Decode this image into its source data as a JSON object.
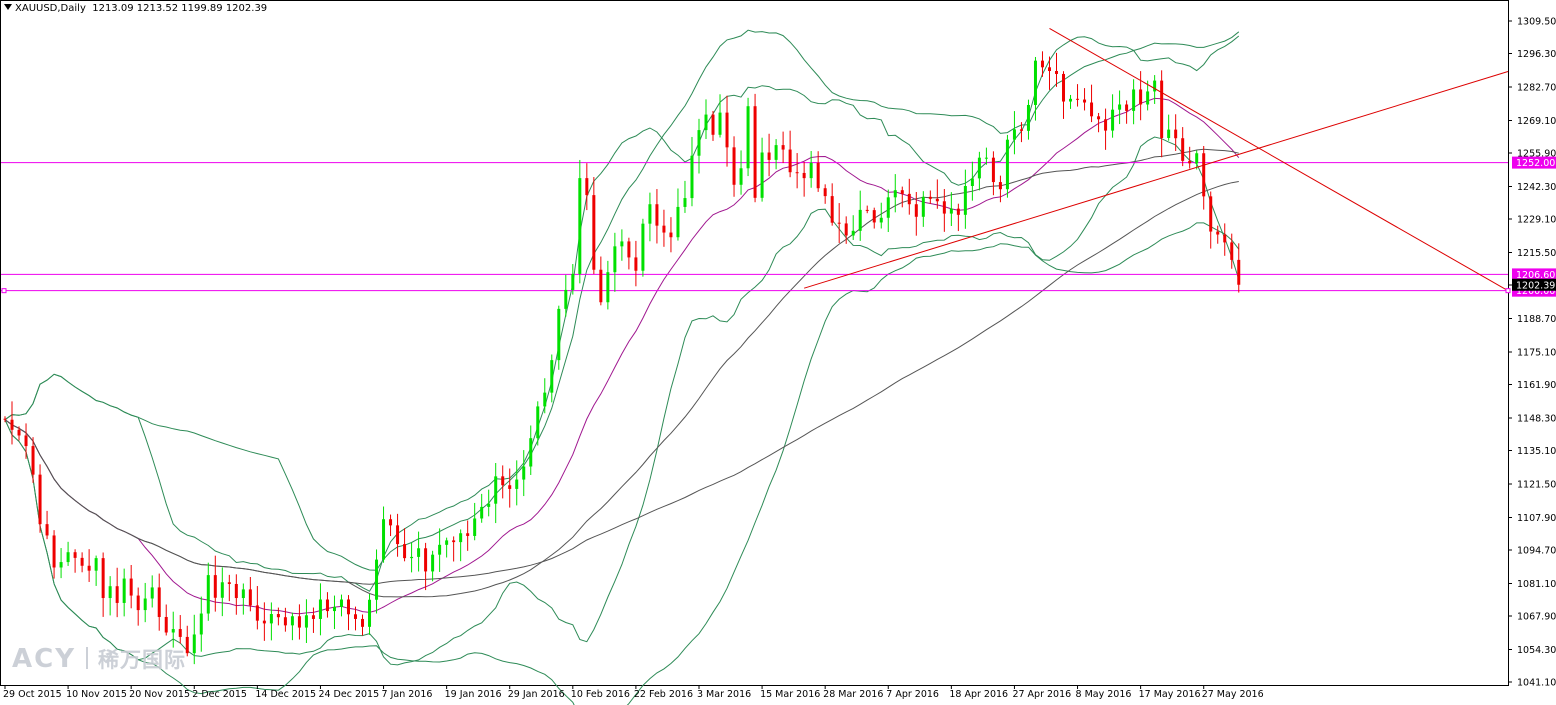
{
  "header": {
    "symbol": "XAUUSD,Daily",
    "ohlc": "1213.09 1213.52 1199.89 1202.39"
  },
  "watermark": {
    "brand": "ACY",
    "cn": "稀万国际"
  },
  "colors": {
    "bull": "#00e000",
    "bear": "#ee0000",
    "bollinger": "#2e8b57",
    "ma_magenta": "#a01890",
    "ma_gray": "#555555",
    "hline": "#ee00ee",
    "trend": "#dd0000"
  },
  "chart_data": {
    "type": "candlestick",
    "symbol": "XAUUSD",
    "timeframe": "Daily",
    "ylim": [
      1041.1,
      1313
    ],
    "y_ticks": [
      1309.5,
      1296.3,
      1282.7,
      1269.1,
      1255.9,
      1242.3,
      1229.1,
      1215.5,
      1202.3,
      1188.7,
      1175.1,
      1161.9,
      1148.3,
      1135.1,
      1121.5,
      1107.9,
      1094.7,
      1081.1,
      1067.9,
      1054.3,
      1041.1
    ],
    "y_tick_labels": [
      "1309.50",
      "1296.30",
      "1282.70",
      "1269.10",
      "1255.90",
      "1242.30",
      "1229.10",
      "1215.50",
      "1202.30",
      "1188.70",
      "1175.10",
      "1161.90",
      "1148.30",
      "1135.10",
      "1121.50",
      "1107.90",
      "1094.70",
      "1081.10",
      "1067.90",
      "1054.30",
      "1041.10"
    ],
    "x_labels": [
      "29 Oct 2015",
      "10 Nov 2015",
      "20 Nov 2015",
      "2 Dec 2015",
      "14 Dec 2015",
      "24 Dec 2015",
      "7 Jan 2016",
      "19 Jan 2016",
      "29 Jan 2016",
      "10 Feb 2016",
      "22 Feb 2016",
      "3 Mar 2016",
      "15 Mar 2016",
      "28 Mar 2016",
      "7 Apr 2016",
      "18 Apr 2016",
      "27 Apr 2016",
      "8 May 2016",
      "17 May 2016",
      "27 May 2016"
    ],
    "x_label_index": [
      0,
      9,
      18,
      27,
      36,
      45,
      54,
      63,
      72,
      81,
      90,
      99,
      108,
      117,
      126,
      135,
      144,
      153,
      162,
      171
    ],
    "close": [
      1147.6,
      1143.5,
      1141.2,
      1136.9,
      1125.3,
      1105.2,
      1100.6,
      1087.6,
      1089.8,
      1093.8,
      1091.5,
      1088.3,
      1086.3,
      1091.4,
      1075.2,
      1080.0,
      1073.2,
      1083.1,
      1076.2,
      1070.3,
      1075.0,
      1079.5,
      1067.5,
      1061.2,
      1062.6,
      1059.4,
      1052.8,
      1060.4,
      1068.9,
      1084.5,
      1075.3,
      1081.6,
      1080.9,
      1075.2,
      1078.7,
      1072.2,
      1066.0,
      1064.9,
      1068.7,
      1067.4,
      1064.1,
      1067.8,
      1063.2,
      1068.2,
      1066.7,
      1074.6,
      1069.9,
      1071.6,
      1074.6,
      1068.6,
      1066.7,
      1063.5,
      1074.5,
      1090.8,
      1107.2,
      1104.7,
      1097.1,
      1091.4,
      1091.9,
      1095.4,
      1086.0,
      1092.8,
      1096.8,
      1098.6,
      1097.9,
      1101.5,
      1100.4,
      1107.5,
      1112.2,
      1113.5,
      1124.6,
      1121.0,
      1119.5,
      1123.3,
      1128.6,
      1140.1,
      1153.0,
      1158.6,
      1171.8,
      1192.6,
      1200.3,
      1206.8,
      1245.7,
      1238.8,
      1208.5,
      1195.3,
      1207.5,
      1218.0,
      1220.0,
      1213.5,
      1208.1,
      1227.2,
      1235.1,
      1226.4,
      1223.6,
      1221.7,
      1234.0,
      1237.6,
      1254.8,
      1265.2,
      1271.5,
      1263.3,
      1272.3,
      1258.2,
      1243.0,
      1249.7,
      1274.9,
      1237.7,
      1256.1,
      1253.1,
      1259.1,
      1257.3,
      1248.1,
      1247.8,
      1245.7,
      1251.9,
      1241.6,
      1238.4,
      1227.6,
      1227.3,
      1222.4,
      1224.3,
      1232.8,
      1232.7,
      1227.7,
      1229.6,
      1237.9,
      1240.8,
      1239.3,
      1235.1,
      1230.0,
      1238.1,
      1237.3,
      1236.3,
      1231.3,
      1233.3,
      1230.8,
      1242.5,
      1245.6,
      1254.0,
      1254.0,
      1244.1,
      1241.2,
      1261.3,
      1265.5,
      1264.9,
      1275.4,
      1293.4,
      1290.7,
      1289.2,
      1288.0,
      1276.8,
      1277.9,
      1277.6,
      1276.4,
      1270.8,
      1269.6,
      1265.0,
      1273.5,
      1275.6,
      1273.0,
      1281.7,
      1275.6,
      1280.9,
      1285.3,
      1262.0,
      1265.4,
      1261.9,
      1252.7,
      1251.7,
      1255.8,
      1238.3,
      1224.0,
      1222.8,
      1219.6,
      1212.5,
      1202.4
    ],
    "candles_ohlc": "open[i] = close[i-1] (open[0] = 1148.0); high/low = max/min(open, close) + wick",
    "levels": [
      1252.0,
      1206.6,
      1200.0
    ],
    "level_labels": [
      "1252.00",
      "1206.60",
      "1200.00"
    ],
    "current_price_label": "1202.39",
    "indicators": [
      "Bollinger Bands",
      "Moving average",
      "Moving average"
    ]
  }
}
